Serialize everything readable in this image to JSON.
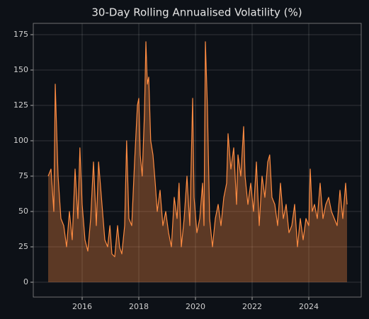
{
  "chart_data": {
    "type": "area",
    "title": "30-Day Rolling Annualised Volatility (%)",
    "x": [
      2014.8,
      2014.9,
      2015.0,
      2015.05,
      2015.15,
      2015.25,
      2015.35,
      2015.45,
      2015.55,
      2015.65,
      2015.75,
      2015.85,
      2015.92,
      2016.0,
      2016.1,
      2016.2,
      2016.3,
      2016.4,
      2016.5,
      2016.58,
      2016.7,
      2016.8,
      2016.9,
      2016.98,
      2017.05,
      2017.15,
      2017.25,
      2017.32,
      2017.4,
      2017.5,
      2017.57,
      2017.65,
      2017.75,
      2017.85,
      2017.95,
      2018.0,
      2018.05,
      2018.12,
      2018.2,
      2018.25,
      2018.3,
      2018.35,
      2018.42,
      2018.5,
      2018.58,
      2018.65,
      2018.75,
      2018.85,
      2018.95,
      2019.05,
      2019.15,
      2019.25,
      2019.35,
      2019.42,
      2019.5,
      2019.6,
      2019.7,
      2019.8,
      2019.9,
      2019.95,
      2020.05,
      2020.15,
      2020.25,
      2020.3,
      2020.35,
      2020.42,
      2020.5,
      2020.6,
      2020.7,
      2020.8,
      2020.9,
      2021.0,
      2021.1,
      2021.15,
      2021.25,
      2021.35,
      2021.45,
      2021.5,
      2021.6,
      2021.7,
      2021.75,
      2021.85,
      2021.95,
      2022.05,
      2022.15,
      2022.25,
      2022.35,
      2022.45,
      2022.55,
      2022.62,
      2022.7,
      2022.8,
      2022.9,
      2023.0,
      2023.1,
      2023.2,
      2023.3,
      2023.4,
      2023.5,
      2023.6,
      2023.7,
      2023.8,
      2023.9,
      2024.0,
      2024.05,
      2024.12,
      2024.2,
      2024.3,
      2024.4,
      2024.5,
      2024.6,
      2024.7,
      2024.8,
      2024.9,
      2025.0,
      2025.1,
      2025.2,
      2025.3,
      2025.35
    ],
    "values": [
      75,
      80,
      50,
      140,
      75,
      45,
      40,
      25,
      50,
      30,
      80,
      45,
      95,
      55,
      30,
      22,
      45,
      85,
      40,
      85,
      55,
      30,
      25,
      40,
      20,
      18,
      40,
      25,
      20,
      40,
      100,
      45,
      40,
      85,
      125,
      130,
      90,
      75,
      120,
      170,
      140,
      145,
      100,
      90,
      70,
      50,
      65,
      40,
      50,
      35,
      25,
      60,
      45,
      70,
      25,
      45,
      75,
      40,
      130,
      60,
      35,
      45,
      70,
      40,
      170,
      125,
      45,
      25,
      45,
      55,
      40,
      60,
      70,
      105,
      80,
      95,
      55,
      90,
      75,
      110,
      75,
      55,
      70,
      50,
      85,
      40,
      75,
      60,
      85,
      90,
      60,
      55,
      40,
      70,
      45,
      55,
      35,
      40,
      55,
      25,
      45,
      30,
      45,
      40,
      80,
      50,
      55,
      45,
      70,
      45,
      55,
      60,
      50,
      45,
      40,
      65,
      45,
      70,
      55
    ],
    "color": "#ff8c42",
    "xlim": [
      2014.275,
      2025.85
    ],
    "xticks": [
      2016,
      2018,
      2020,
      2022,
      2024
    ],
    "ylim": [
      -10.5,
      183
    ],
    "yticks": [
      0,
      25,
      50,
      75,
      100,
      125,
      150,
      175
    ],
    "grid": true
  }
}
